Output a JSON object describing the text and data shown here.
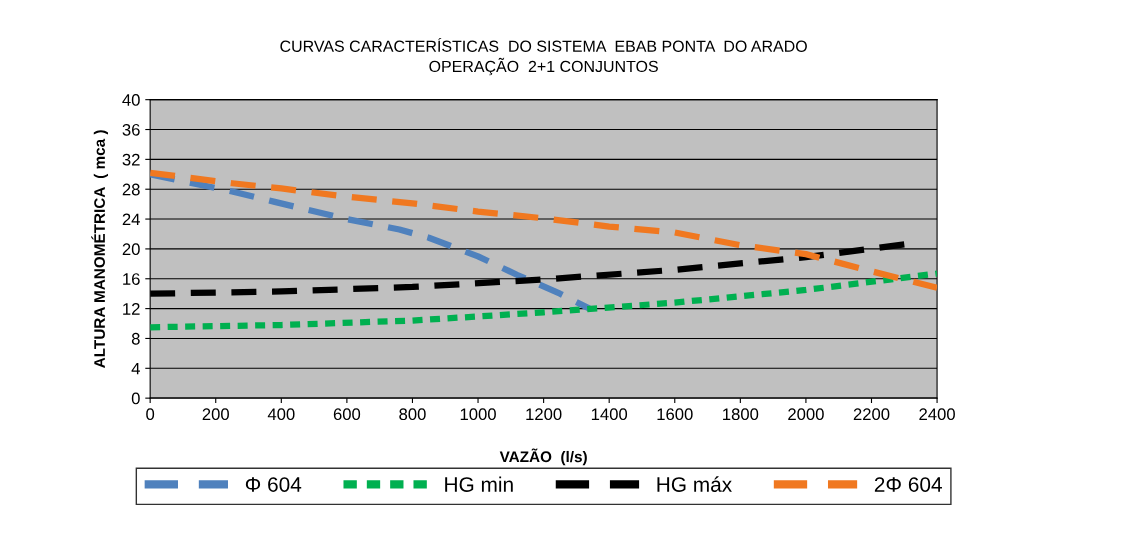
{
  "chart_data": {
    "type": "line",
    "title": "CURVAS CARACTERÍSTICAS  DO SISTEMA  EBAB PONTA  DO ARADO\nOPERAÇÃO  2+1 CONJUNTOS",
    "xlabel": "VAZÃO  (l/s)",
    "ylabel": "ALTURA MANOMÉTRICA  ( mca )",
    "xlim": [
      0,
      2400
    ],
    "xticks": [
      0,
      200,
      400,
      600,
      800,
      1000,
      1200,
      1400,
      1600,
      1800,
      2000,
      2200,
      2400
    ],
    "ylim": [
      0,
      40
    ],
    "yticks": [
      0,
      4,
      8,
      12,
      16,
      20,
      24,
      28,
      32,
      36,
      40
    ],
    "grid": "y",
    "legend": "bottom",
    "series": [
      {
        "name": "Φ 604",
        "color": "#4f81bd",
        "line_style": "dashed",
        "x": [
          0,
          250,
          380,
          600,
          760,
          850,
          1000,
          1120,
          1250,
          1340
        ],
        "values": [
          30,
          27.7,
          26.3,
          24,
          22.6,
          21.5,
          19,
          16.5,
          14,
          12
        ]
      },
      {
        "name": "HG min",
        "color": "#00b050",
        "line_style": "dotted",
        "x": [
          0,
          400,
          800,
          1200,
          1600,
          2000,
          2400
        ],
        "values": [
          9.5,
          9.8,
          10.4,
          11.5,
          12.8,
          14.5,
          16.7
        ]
      },
      {
        "name": "HG máx",
        "color": "#000000",
        "line_style": "dashed",
        "x": [
          0,
          400,
          800,
          1200,
          1600,
          2000,
          2300
        ],
        "values": [
          14,
          14.3,
          14.9,
          15.9,
          17.2,
          18.9,
          20.6
        ]
      },
      {
        "name": "2Φ 604",
        "color": "#f07820",
        "line_style": "dashed",
        "x": [
          0,
          250,
          400,
          600,
          800,
          1000,
          1200,
          1400,
          1600,
          1800,
          2000,
          2200,
          2400
        ],
        "values": [
          30.2,
          28.8,
          28.1,
          27,
          26.1,
          25,
          24.1,
          23,
          22.2,
          20.5,
          19.3,
          17,
          14.8
        ]
      }
    ]
  }
}
